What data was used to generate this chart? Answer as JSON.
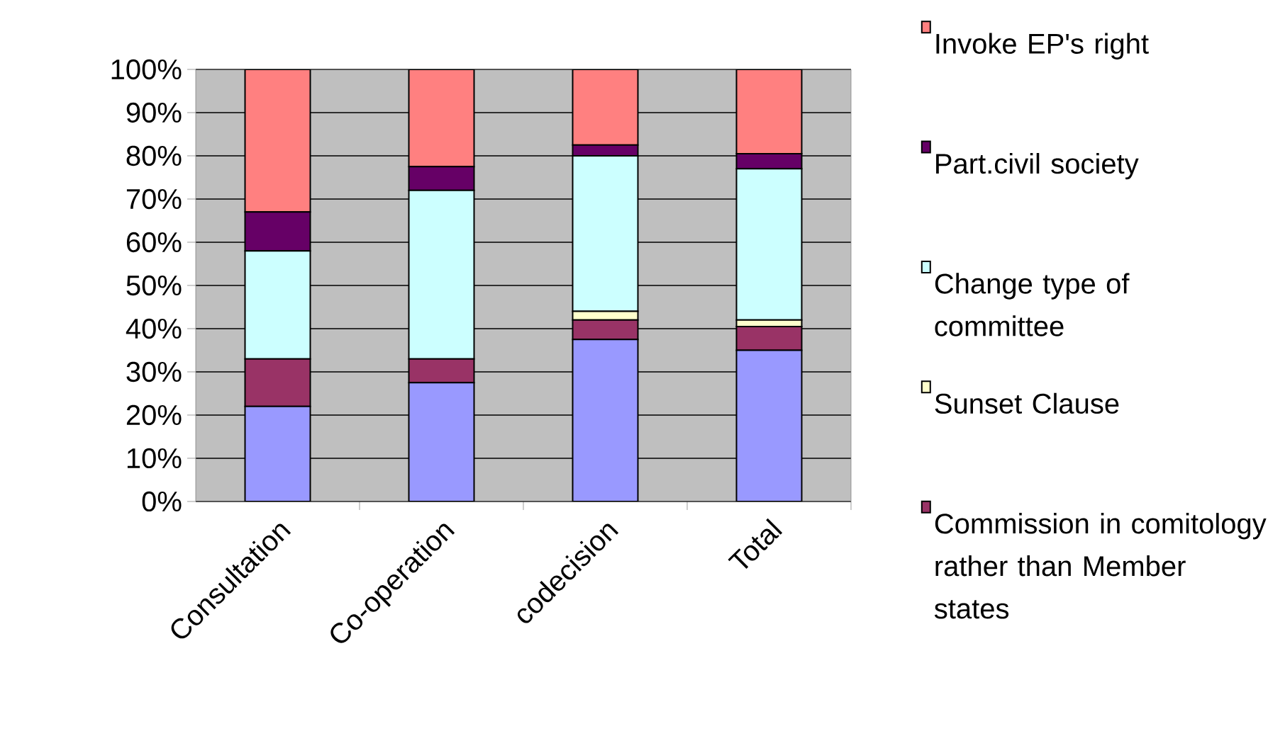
{
  "chart_data": {
    "type": "bar",
    "stacked": true,
    "categories": [
      "Consultation",
      "Co-operation",
      "codecision",
      "Total"
    ],
    "series": [
      {
        "color": "#9999ff",
        "values": [
          22,
          27.5,
          37.5,
          35
        ]
      },
      {
        "name": "Commission in comitology rather than Member states",
        "color": "#993366",
        "values": [
          11,
          5.5,
          4.5,
          5.5
        ]
      },
      {
        "name": "Sunset Clause",
        "color": "#ffffcc",
        "values": [
          0,
          0,
          2,
          1.5
        ]
      },
      {
        "name": "Change type of committee",
        "color": "#ccffff",
        "values": [
          25,
          39,
          36,
          35
        ]
      },
      {
        "name": "Part.civil society",
        "color": "#660066",
        "values": [
          9,
          5.5,
          2.5,
          3.5
        ]
      },
      {
        "name": "Invoke EP's right",
        "color": "#ff8080",
        "values": [
          33,
          22.5,
          17.5,
          19.5
        ]
      }
    ],
    "ylim": [
      0,
      100
    ],
    "yticks": [
      {
        "value": 0,
        "label": "0%"
      },
      {
        "value": 10,
        "label": "10%"
      },
      {
        "value": 20,
        "label": "20%"
      },
      {
        "value": 30,
        "label": "30%"
      },
      {
        "value": 40,
        "label": "40%"
      },
      {
        "value": 50,
        "label": "50%"
      },
      {
        "value": 60,
        "label": "60%"
      },
      {
        "value": 70,
        "label": "70%"
      },
      {
        "value": 80,
        "label": "80%"
      },
      {
        "value": 90,
        "label": "90%"
      },
      {
        "value": 100,
        "label": "100%"
      }
    ],
    "grid": "y",
    "legend": "right"
  }
}
